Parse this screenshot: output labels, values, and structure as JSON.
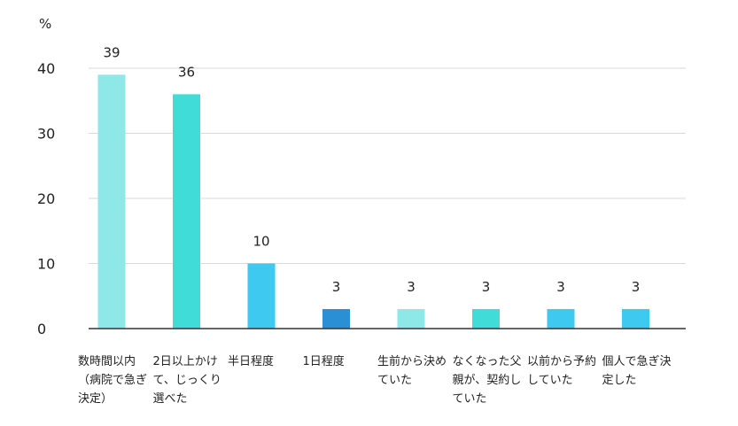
{
  "chart_data": {
    "type": "bar",
    "unit_label": "%",
    "categories": [
      "数時間以内（病院で急ぎ決定）",
      "2日以上かけて、じっくり選べた",
      "半日程度",
      "1日程度",
      "生前から決めていた",
      "なくなった父親が、契約していた",
      "以前から予約していた",
      "個人で急ぎ決定した"
    ],
    "values": [
      39,
      36,
      10,
      3,
      3,
      3,
      3,
      3
    ],
    "colors": [
      "#8ee8e8",
      "#40dcd8",
      "#3ecaf0",
      "#2b8fd6",
      "#8ee8e8",
      "#40dcd8",
      "#3ecaf0",
      "#3ecaf0"
    ],
    "yticks": [
      0,
      10,
      20,
      30,
      40
    ],
    "ylim": [
      0,
      40
    ],
    "grid": true
  }
}
